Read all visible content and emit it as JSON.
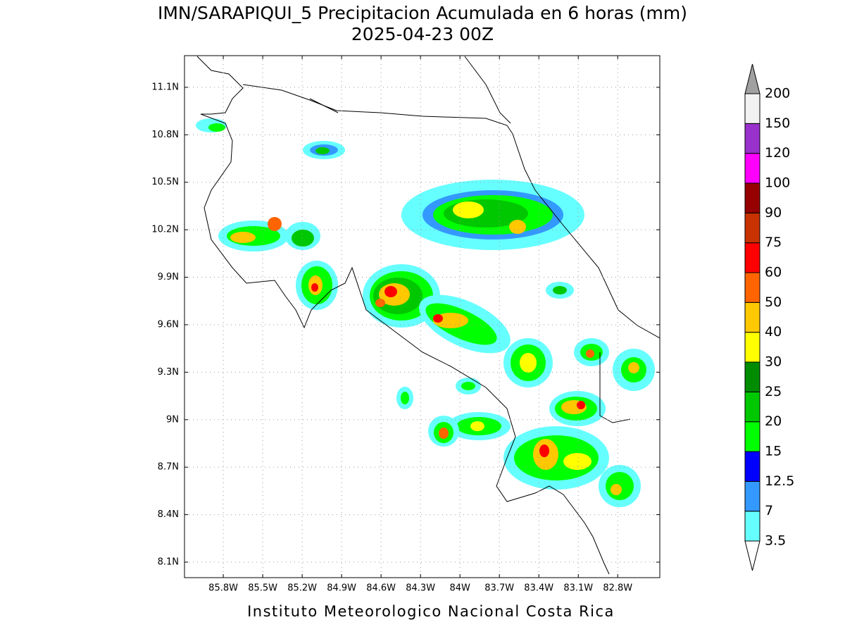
{
  "map": {
    "title": "IMN/SARAPIQUI_5 Precipitacion Acumulada en 6 horas (mm)",
    "subtitle": "2025-04-23 00Z",
    "xlim": [
      -86.095,
      -82.48
    ],
    "ylim": [
      8.002,
      11.3
    ],
    "lat_ticks": [
      {
        "value": 8.1,
        "label": "8.1N"
      },
      {
        "value": 8.4,
        "label": "8.4N"
      },
      {
        "value": 8.7,
        "label": "8.7N"
      },
      {
        "value": 9,
        "label": "9N"
      },
      {
        "value": 9.3,
        "label": "9.3N"
      },
      {
        "value": 9.6,
        "label": "9.6N"
      },
      {
        "value": 9.9,
        "label": "9.9N"
      },
      {
        "value": 10.2,
        "label": "10.2N"
      },
      {
        "value": 10.5,
        "label": "10.5N"
      },
      {
        "value": 10.8,
        "label": "10.8N"
      },
      {
        "value": 11.1,
        "label": "11.1N"
      }
    ],
    "lon_ticks": [
      {
        "value": -85.8,
        "label": "85.8W"
      },
      {
        "value": -85.5,
        "label": "85.5W"
      },
      {
        "value": -85.2,
        "label": "85.2W"
      },
      {
        "value": -84.9,
        "label": "84.9W"
      },
      {
        "value": -84.6,
        "label": "84.6W"
      },
      {
        "value": -84.3,
        "label": "84.3W"
      },
      {
        "value": -84,
        "label": "84W"
      },
      {
        "value": -83.7,
        "label": "83.7W"
      },
      {
        "value": -83.4,
        "label": "83.4W"
      },
      {
        "value": -83.1,
        "label": "83.1W"
      },
      {
        "value": -82.8,
        "label": "82.8W"
      }
    ],
    "grid": true,
    "colorbar": {
      "levels": [
        3.5,
        7,
        12.5,
        15,
        20,
        25,
        30,
        40,
        50,
        60,
        75,
        90,
        100,
        120,
        150,
        200
      ],
      "colors": [
        "#66ffff",
        "#3399ff",
        "#0000ff",
        "#00ff00",
        "#00c800",
        "#008c00",
        "#ffff00",
        "#ffc800",
        "#ff6400",
        "#ff0000",
        "#c83200",
        "#960000",
        "#ff00ff",
        "#9932cc",
        "#f2f2f2"
      ],
      "under_color": "#ffffff",
      "over_color": "#a0a0a0"
    },
    "footer": "Instituto Meteorologico Nacional Costa Rica"
  }
}
